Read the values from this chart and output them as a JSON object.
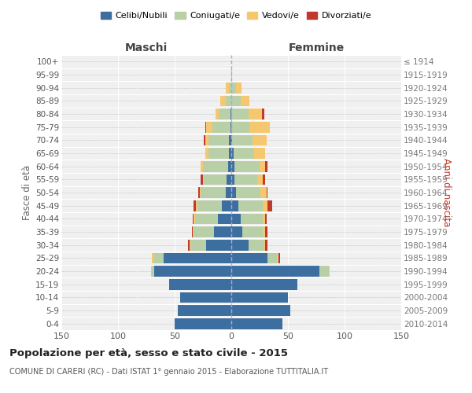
{
  "age_groups": [
    "0-4",
    "5-9",
    "10-14",
    "15-19",
    "20-24",
    "25-29",
    "30-34",
    "35-39",
    "40-44",
    "45-49",
    "50-54",
    "55-59",
    "60-64",
    "65-69",
    "70-74",
    "75-79",
    "80-84",
    "85-89",
    "90-94",
    "95-99",
    "100+"
  ],
  "birth_years": [
    "2010-2014",
    "2005-2009",
    "2000-2004",
    "1995-1999",
    "1990-1994",
    "1985-1989",
    "1980-1984",
    "1975-1979",
    "1970-1974",
    "1965-1969",
    "1960-1964",
    "1955-1959",
    "1950-1954",
    "1945-1949",
    "1940-1944",
    "1935-1939",
    "1930-1934",
    "1925-1929",
    "1920-1924",
    "1915-1919",
    "≤ 1914"
  ],
  "male": {
    "celibi": [
      50,
      47,
      45,
      55,
      68,
      60,
      22,
      15,
      12,
      8,
      5,
      4,
      3,
      2,
      2,
      1,
      1,
      0,
      0,
      0,
      0
    ],
    "coniugati": [
      0,
      0,
      0,
      0,
      2,
      8,
      14,
      18,
      20,
      22,
      22,
      20,
      22,
      18,
      18,
      16,
      10,
      5,
      2,
      0,
      0
    ],
    "vedovi": [
      0,
      0,
      0,
      0,
      1,
      2,
      1,
      1,
      1,
      1,
      1,
      1,
      2,
      3,
      3,
      5,
      3,
      5,
      3,
      0,
      0
    ],
    "divorziati": [
      0,
      0,
      0,
      0,
      0,
      0,
      1,
      1,
      1,
      2,
      1,
      2,
      0,
      0,
      1,
      1,
      0,
      0,
      0,
      0,
      0
    ]
  },
  "female": {
    "nubili": [
      45,
      52,
      50,
      58,
      78,
      32,
      15,
      10,
      8,
      6,
      4,
      3,
      3,
      2,
      1,
      0,
      0,
      0,
      0,
      0,
      0
    ],
    "coniugate": [
      0,
      0,
      0,
      0,
      8,
      8,
      14,
      18,
      20,
      22,
      22,
      20,
      22,
      18,
      18,
      16,
      15,
      8,
      4,
      1,
      0
    ],
    "vedove": [
      0,
      0,
      0,
      0,
      1,
      2,
      1,
      2,
      2,
      4,
      5,
      5,
      5,
      10,
      12,
      18,
      12,
      8,
      5,
      0,
      0
    ],
    "divorziate": [
      0,
      0,
      0,
      0,
      0,
      1,
      2,
      2,
      1,
      4,
      1,
      2,
      2,
      0,
      0,
      0,
      2,
      0,
      0,
      0,
      0
    ]
  },
  "colors": {
    "celibi": "#3d6ea0",
    "coniugati": "#b8cfa8",
    "vedovi": "#f5c76e",
    "divorziati": "#c0392b"
  },
  "xlim": 150,
  "title": "Popolazione per età, sesso e stato civile - 2015",
  "subtitle": "COMUNE DI CARERI (RC) - Dati ISTAT 1° gennaio 2015 - Elaborazione TUTTITALIA.IT",
  "ylabel_left": "Fasce di età",
  "ylabel_right": "Anni di nascita",
  "header_left": "Maschi",
  "header_right": "Femmine",
  "bg_color": "#f0f0f0",
  "grid_color": "#cccccc"
}
